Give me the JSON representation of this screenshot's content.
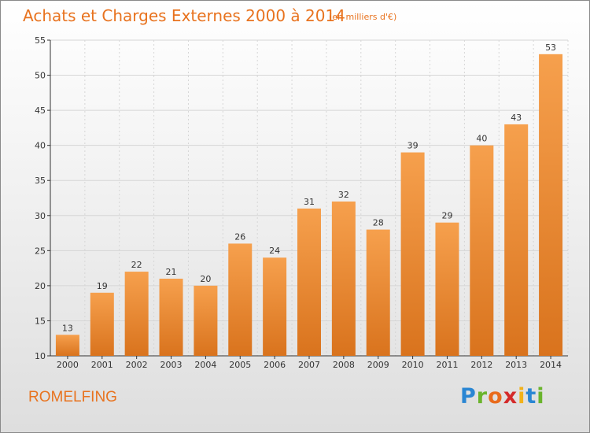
{
  "header": {
    "title": "Achats et Charges Externes 2000 à 2014",
    "subtitle": "(en milliers d'€)"
  },
  "footer": {
    "commune": "ROMELFING",
    "brand": "Proxiti"
  },
  "chart_data": {
    "type": "bar",
    "categories": [
      "2000",
      "2001",
      "2002",
      "2003",
      "2004",
      "2005",
      "2006",
      "2007",
      "2008",
      "2009",
      "2010",
      "2011",
      "2012",
      "2013",
      "2014"
    ],
    "values": [
      13,
      19,
      22,
      21,
      20,
      26,
      24,
      31,
      32,
      28,
      39,
      29,
      40,
      43,
      53
    ],
    "data_labels": [
      "13",
      "19",
      "22",
      "21",
      "20",
      "26",
      "24",
      "31",
      "32",
      "28",
      "39",
      "29",
      "40",
      "43",
      "53"
    ],
    "title": "Achats et Charges Externes 2000 à 2014",
    "xlabel": "",
    "ylabel": "",
    "ylim": [
      10,
      55
    ],
    "yticks": [
      10,
      15,
      20,
      25,
      30,
      35,
      40,
      45,
      50,
      55
    ],
    "grid": true,
    "legend": "none",
    "colors": {
      "bar_top": "#f6a04d",
      "bar_bottom": "#d9731d",
      "title": "#e8731f",
      "axis": "#333333"
    }
  }
}
